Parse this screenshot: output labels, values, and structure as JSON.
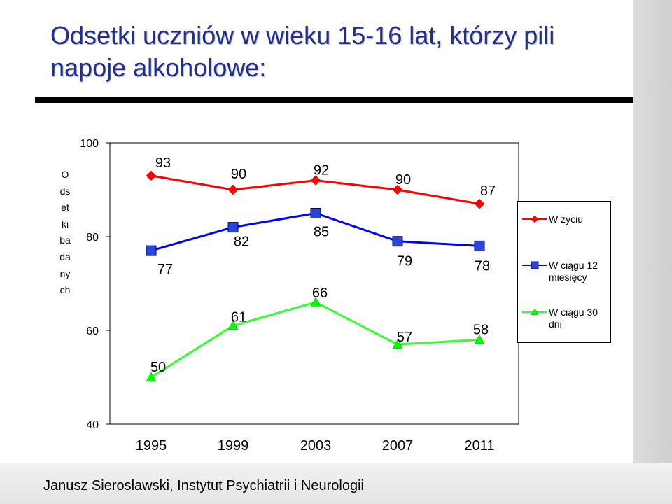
{
  "title": "Odsetki uczniów w wieku 15-16 lat, którzy pili napoje alkoholowe:",
  "footer": "Janusz Sierosławski, Instytut Psychiatrii i Neurologii",
  "colors": {
    "title": "#1f2f8a",
    "series_red": "#ff0000",
    "series_blue": "#0000ff",
    "series_green": "#00ff00"
  },
  "chart_data": {
    "type": "line",
    "title": "",
    "ylabel": "Odsetki badanych",
    "xlabel": "",
    "x": [
      "1995",
      "1999",
      "2003",
      "2007",
      "2011"
    ],
    "ylim": [
      40,
      100
    ],
    "yticks": [
      40,
      60,
      80,
      100
    ],
    "grid": false,
    "legend": "right",
    "series": [
      {
        "name": "W życiu",
        "values": [
          93,
          90,
          92,
          90,
          87
        ],
        "color": "#ff0000",
        "stroke": "#ff0000",
        "marker": "diamond",
        "marker_fill": "#ff0000"
      },
      {
        "name": "W ciągu 12 miesięcy",
        "values": [
          77,
          82,
          85,
          79,
          78
        ],
        "color": "#0000ff",
        "stroke": "#0000ff",
        "marker": "square",
        "marker_fill": "#2a46d8"
      },
      {
        "name": "W ciągu 30 dni",
        "values": [
          50,
          61,
          66,
          57,
          58
        ],
        "color": "#00ff00",
        "stroke": "#33ff33",
        "marker": "triangle",
        "marker_fill": "#00ff00"
      }
    ]
  }
}
